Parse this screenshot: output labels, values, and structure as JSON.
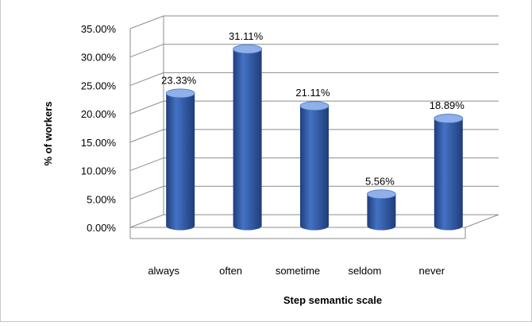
{
  "chart_data": {
    "type": "bar",
    "style": "3d-cylinder",
    "categories": [
      "always",
      "often",
      "sometime",
      "seldom",
      "never"
    ],
    "values": [
      23.33,
      31.11,
      21.11,
      5.56,
      18.89
    ],
    "data_labels": [
      "23.33%",
      "31.11%",
      "21.11%",
      "5.56%",
      "18.89%"
    ],
    "yticks": [
      "0.00%",
      "5.00%",
      "10.00%",
      "15.00%",
      "20.00%",
      "25.00%",
      "30.00%",
      "35.00%"
    ],
    "ylim": [
      0,
      35
    ],
    "xlabel": "Step semantic scale",
    "ylabel": "% of workers",
    "grid": true,
    "legend": "none",
    "colors": {
      "bar": "#4472c4",
      "bar_dark": "#1f3d7a",
      "bar_light": "#8fb0e8",
      "grid": "#8c8c8c"
    }
  }
}
